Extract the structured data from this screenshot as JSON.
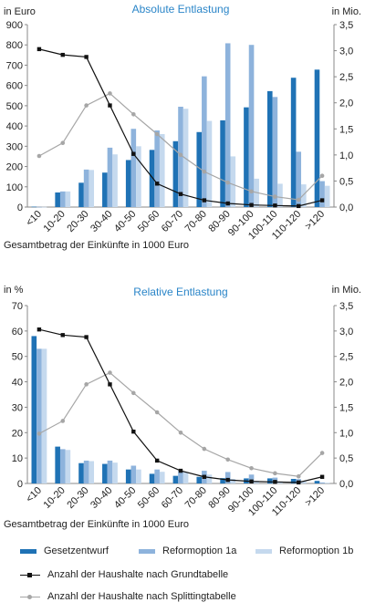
{
  "colors": {
    "gesetz": "#1f72b5",
    "reform1a": "#8eb3dc",
    "reform1b": "#c5d9ee",
    "grund": "#111111",
    "splitting": "#a6a6a6",
    "title": "#2a85c8",
    "axis": "#888888"
  },
  "chart_data": [
    {
      "type": "bar",
      "title": "Absolute Entlastung",
      "ylabel_left": "in Euro",
      "ylabel_right": "in Mio.",
      "xlabel": "Gesamtbetrag der Einkünfte in 1000 Euro",
      "categories": [
        "<10",
        "10-20",
        "20-30",
        "30-40",
        "40-50",
        "50-60",
        "60-70",
        "70-80",
        "80-90",
        "90-100",
        "100-110",
        "110-120",
        ">120"
      ],
      "ylim": [
        0,
        900
      ],
      "yticks": [
        "0",
        "100",
        "200",
        "300",
        "400",
        "500",
        "600",
        "700",
        "800",
        "900"
      ],
      "y2lim": [
        0,
        3.5
      ],
      "y2ticks": [
        "0,0",
        "0,5",
        "1,0",
        "1,5",
        "2,0",
        "2,5",
        "3,0",
        "3,5"
      ],
      "series": [
        {
          "name": "Gesetzentwurf",
          "kind": "bar",
          "values": [
            2,
            72,
            120,
            170,
            232,
            282,
            325,
            370,
            428,
            492,
            572,
            638,
            678
          ]
        },
        {
          "name": "Reformoption 1a",
          "kind": "bar",
          "values": [
            1,
            77,
            185,
            293,
            386,
            378,
            495,
            645,
            808,
            800,
            543,
            273,
            128
          ]
        },
        {
          "name": "Reformoption 1b",
          "kind": "bar",
          "values": [
            1,
            77,
            183,
            260,
            300,
            360,
            485,
            425,
            250,
            140,
            115,
            112,
            105
          ]
        },
        {
          "name": "Anzahl der Haushalte nach Grundtabelle",
          "kind": "line",
          "axis": "right",
          "values": [
            3.03,
            2.92,
            2.88,
            1.95,
            1.02,
            0.45,
            0.25,
            0.13,
            0.07,
            0.04,
            0.03,
            0.02,
            0.13
          ]
        },
        {
          "name": "Anzahl der Haushalte nach Splittingtabelle",
          "kind": "line",
          "axis": "right",
          "values": [
            0.98,
            1.23,
            1.95,
            2.18,
            1.78,
            1.4,
            1.0,
            0.68,
            0.47,
            0.3,
            0.2,
            0.14,
            0.6
          ]
        }
      ]
    },
    {
      "type": "bar",
      "title": "Relative Entlastung",
      "ylabel_left": "in %",
      "ylabel_right": "in Mio.",
      "xlabel": "Gesamtbetrag der Einkünfte in 1000 Euro",
      "categories": [
        "<10",
        "10-20",
        "20-30",
        "30-40",
        "40-50",
        "50-60",
        "60-70",
        "70-80",
        "80-90",
        "90-100",
        "100-110",
        "110-120",
        ">120"
      ],
      "ylim": [
        0,
        70
      ],
      "yticks": [
        "0",
        "10",
        "20",
        "30",
        "40",
        "50",
        "60",
        "70"
      ],
      "y2lim": [
        0,
        3.5
      ],
      "y2ticks": [
        "0,0",
        "0,5",
        "1,0",
        "1,5",
        "2,0",
        "2,5",
        "3,0",
        "3,5"
      ],
      "series": [
        {
          "name": "Gesetzentwurf",
          "kind": "bar",
          "values": [
            58,
            14.5,
            8,
            7.7,
            5.5,
            3.8,
            3.0,
            2.6,
            2.1,
            2.0,
            2.0,
            1.8,
            1.0
          ]
        },
        {
          "name": "Reformoption 1a",
          "kind": "bar",
          "values": [
            53,
            13.5,
            9,
            9,
            7,
            5.5,
            5,
            5,
            4.5,
            3.5,
            2.3,
            1.7,
            0.4
          ]
        },
        {
          "name": "Reformoption 1b",
          "kind": "bar",
          "values": [
            53,
            13.2,
            8.8,
            8.2,
            5.5,
            4.6,
            4.5,
            3.5,
            1.8,
            1.0,
            0.8,
            0.8,
            0.3
          ]
        },
        {
          "name": "Anzahl der Haushalte nach Grundtabelle",
          "kind": "line",
          "axis": "right",
          "values": [
            3.03,
            2.92,
            2.88,
            1.95,
            1.02,
            0.45,
            0.25,
            0.13,
            0.07,
            0.04,
            0.03,
            0.02,
            0.13
          ]
        },
        {
          "name": "Anzahl der Haushalte nach Splittingtabelle",
          "kind": "line",
          "axis": "right",
          "values": [
            0.98,
            1.23,
            1.95,
            2.18,
            1.78,
            1.4,
            1.0,
            0.68,
            0.47,
            0.3,
            0.2,
            0.14,
            0.6
          ]
        }
      ]
    }
  ],
  "legend": {
    "gesetz": "Gesetzentwurf",
    "reform1a": "Reformoption 1a",
    "reform1b": "Reformoption 1b",
    "grund": "Anzahl der Haushalte nach Grundtabelle",
    "splitting": "Anzahl der Haushalte nach Splittingtabelle"
  }
}
